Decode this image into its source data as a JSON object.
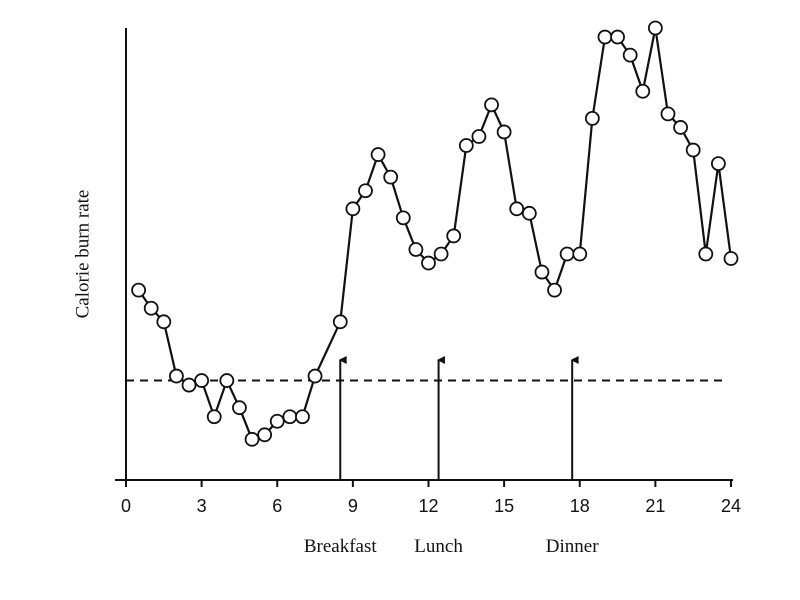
{
  "chart_data": {
    "type": "line",
    "y_label": "Calorie burn rate",
    "x": [
      0.5,
      1,
      1.5,
      2,
      2.5,
      3,
      3.5,
      4,
      4.5,
      5,
      5.5,
      6,
      6.5,
      7,
      7.5,
      8.5,
      9,
      9.5,
      10,
      10.5,
      11,
      11.5,
      12,
      12.5,
      13,
      13.5,
      14,
      14.5,
      15,
      15.5,
      16,
      16.5,
      17,
      17.5,
      18,
      18.5,
      19,
      19.5,
      20,
      20.5,
      21,
      21.5,
      22,
      22.5,
      23,
      23.5,
      24
    ],
    "values": [
      42,
      38,
      35,
      23,
      21,
      22,
      14,
      22,
      16,
      9,
      10,
      13,
      14,
      14,
      23,
      35,
      60,
      64,
      72,
      67,
      58,
      51,
      48,
      50,
      54,
      74,
      76,
      83,
      77,
      60,
      59,
      46,
      42,
      50,
      50,
      80,
      98,
      98,
      94,
      86,
      100,
      81,
      78,
      73,
      50,
      70,
      49
    ],
    "color": "#111111",
    "xlim": [
      0,
      24
    ],
    "ylim": [
      0,
      100
    ],
    "xticks": [
      0,
      3,
      6,
      9,
      12,
      15,
      18,
      21,
      24
    ],
    "baseline": 22,
    "annotations": [
      {
        "x": 8.5,
        "label": "Breakfast"
      },
      {
        "x": 12.4,
        "label": "Lunch"
      },
      {
        "x": 17.7,
        "label": "Dinner"
      }
    ]
  }
}
